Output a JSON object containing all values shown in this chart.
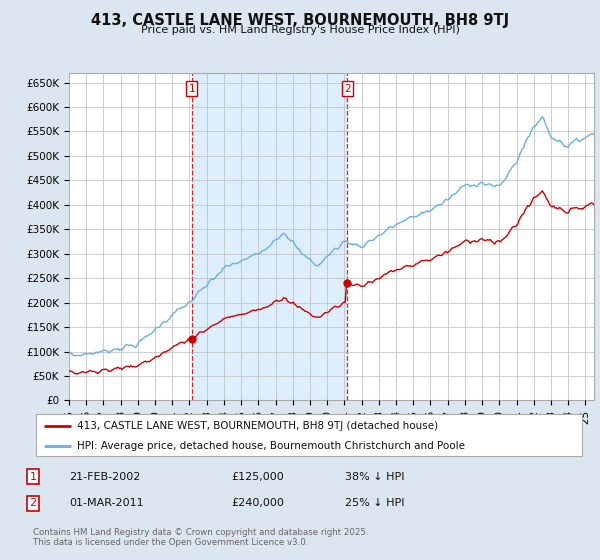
{
  "title": "413, CASTLE LANE WEST, BOURNEMOUTH, BH8 9TJ",
  "subtitle": "Price paid vs. HM Land Registry's House Price Index (HPI)",
  "ylabel_ticks": [
    "£0",
    "£50K",
    "£100K",
    "£150K",
    "£200K",
    "£250K",
    "£300K",
    "£350K",
    "£400K",
    "£450K",
    "£500K",
    "£550K",
    "£600K",
    "£650K"
  ],
  "ytick_values": [
    0,
    50000,
    100000,
    150000,
    200000,
    250000,
    300000,
    350000,
    400000,
    450000,
    500000,
    550000,
    600000,
    650000
  ],
  "ylim": [
    0,
    670000
  ],
  "legend_entry1": "413, CASTLE LANE WEST, BOURNEMOUTH, BH8 9TJ (detached house)",
  "legend_entry2": "HPI: Average price, detached house, Bournemouth Christchurch and Poole",
  "sale1_label": "1",
  "sale1_date": "21-FEB-2002",
  "sale1_price": "£125,000",
  "sale1_pct": "38% ↓ HPI",
  "sale2_label": "2",
  "sale2_date": "01-MAR-2011",
  "sale2_price": "£240,000",
  "sale2_pct": "25% ↓ HPI",
  "footer": "Contains HM Land Registry data © Crown copyright and database right 2025.\nThis data is licensed under the Open Government Licence v3.0.",
  "hpi_color": "#6aaee8",
  "price_color": "#cc0000",
  "marker_color": "#cc0000",
  "background_color": "#dce6f1",
  "plot_bg_color": "#ffffff",
  "shaded_color": "#ddeeff",
  "grid_color": "#bbbbbb",
  "sale1_year": 2002.137,
  "sale2_year": 2011.164
}
